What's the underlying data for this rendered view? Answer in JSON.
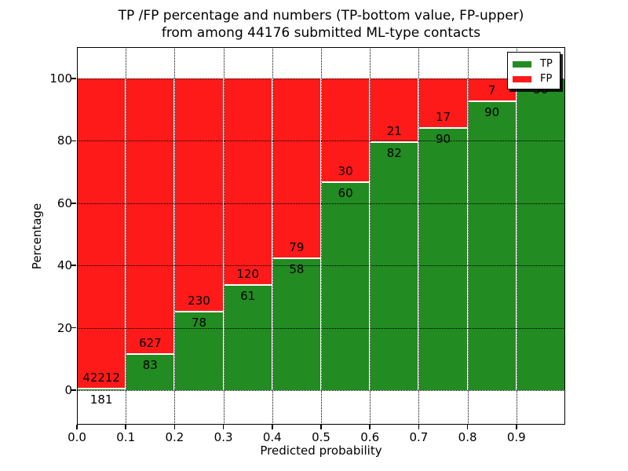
{
  "chart_data": {
    "type": "bar",
    "stacked": true,
    "normalized": "each bar totals 100 percent",
    "title": "TP /FP percentage and numbers (TP-bottom value, FP-upper) from among 44176 submitted ML-type contacts",
    "title_line1": "TP /FP percentage and numbers (TP-bottom value, FP-upper)",
    "title_line2": "from among 44176 submitted ML-type contacts",
    "xlabel": "Predicted probability",
    "ylabel": "Percentage",
    "x_tick_labels": [
      "0.0",
      "0.1",
      "0.2",
      "0.3",
      "0.4",
      "0.5",
      "0.6",
      "0.7",
      "0.8",
      "0.9"
    ],
    "y_tick_labels": [
      "0",
      "20",
      "40",
      "60",
      "80",
      "100"
    ],
    "y_tick_values": [
      0,
      20,
      40,
      60,
      80,
      100
    ],
    "xlim": [
      0.0,
      1.0
    ],
    "ylim": [
      -11,
      110
    ],
    "grid": "dotted",
    "legend": {
      "position": "upper right",
      "entries": [
        {
          "label": "TP",
          "color": "#228b22"
        },
        {
          "label": "FP",
          "color": "#ff1a1a"
        }
      ]
    },
    "colors": {
      "tp": "#228b22",
      "fp": "#ff1a1a"
    },
    "label_convention": "TP count printed below segment boundary, FP count above it",
    "bars": [
      {
        "bin_start": 0.0,
        "bin_end": 0.1,
        "tp": 181,
        "fp": 42212,
        "tp_pct": 0.43
      },
      {
        "bin_start": 0.1,
        "bin_end": 0.2,
        "tp": 83,
        "fp": 627,
        "tp_pct": 11.7
      },
      {
        "bin_start": 0.2,
        "bin_end": 0.3,
        "tp": 78,
        "fp": 230,
        "tp_pct": 25.3
      },
      {
        "bin_start": 0.3,
        "bin_end": 0.4,
        "tp": 61,
        "fp": 120,
        "tp_pct": 33.7
      },
      {
        "bin_start": 0.4,
        "bin_end": 0.5,
        "tp": 58,
        "fp": 79,
        "tp_pct": 42.3
      },
      {
        "bin_start": 0.5,
        "bin_end": 0.6,
        "tp": 60,
        "fp": 30,
        "tp_pct": 66.7
      },
      {
        "bin_start": 0.6,
        "bin_end": 0.7,
        "tp": 82,
        "fp": 21,
        "tp_pct": 79.6
      },
      {
        "bin_start": 0.7,
        "bin_end": 0.8,
        "tp": 90,
        "fp": 17,
        "tp_pct": 84.1
      },
      {
        "bin_start": 0.8,
        "bin_end": 0.9,
        "tp": 90,
        "fp": 7,
        "tp_pct": 92.8
      },
      {
        "bin_start": 0.9,
        "bin_end": 1.0,
        "tp": 50,
        "fp": null,
        "tp_pct": 100
      }
    ]
  }
}
